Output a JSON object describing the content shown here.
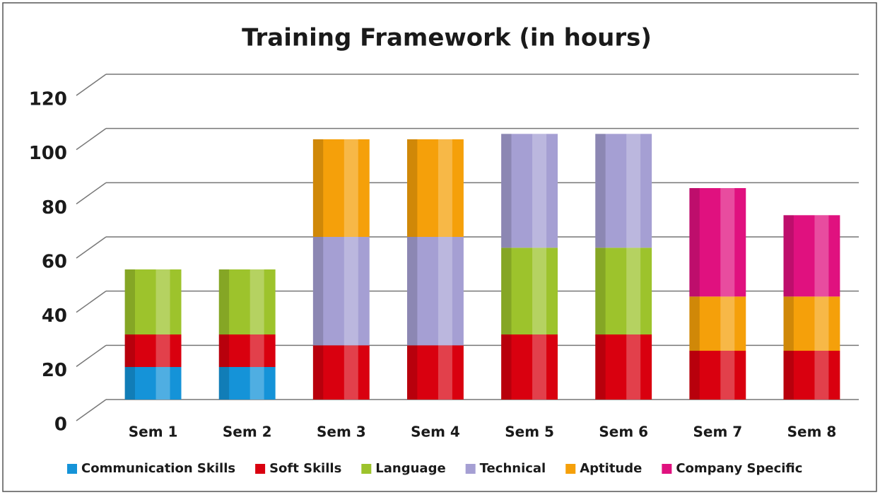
{
  "chart_data": {
    "type": "stacked_bar",
    "title": "Training Framework (in hours)",
    "categories": [
      "Sem 1",
      "Sem 2",
      "Sem 3",
      "Sem 4",
      "Sem 5",
      "Sem 6",
      "Sem 7",
      "Sem 8"
    ],
    "series": [
      {
        "name": "Communication Skills",
        "color": "#1593d8",
        "values": [
          12,
          12,
          null,
          null,
          null,
          null,
          null,
          null
        ]
      },
      {
        "name": "Soft Skills",
        "color": "#d9000f",
        "values": [
          12,
          12,
          20,
          20,
          24,
          24,
          18,
          18
        ]
      },
      {
        "name": "Language",
        "color": "#9dc32c",
        "values": [
          24,
          24,
          null,
          null,
          32,
          32,
          null,
          null
        ]
      },
      {
        "name": "Technical",
        "color": "#a59fd3",
        "values": [
          null,
          null,
          40,
          40,
          42,
          42,
          null,
          null
        ]
      },
      {
        "name": "Aptitude",
        "color": "#f5a00a",
        "values": [
          null,
          null,
          36,
          36,
          null,
          null,
          20,
          20
        ]
      },
      {
        "name": "Company Specific",
        "color": "#e0117f",
        "values": [
          null,
          null,
          null,
          null,
          null,
          null,
          40,
          30
        ]
      }
    ],
    "ylim": [
      0,
      120
    ],
    "yticks": [
      0,
      20,
      40,
      60,
      80,
      100,
      120
    ],
    "grid": true,
    "legend": "bottom"
  }
}
